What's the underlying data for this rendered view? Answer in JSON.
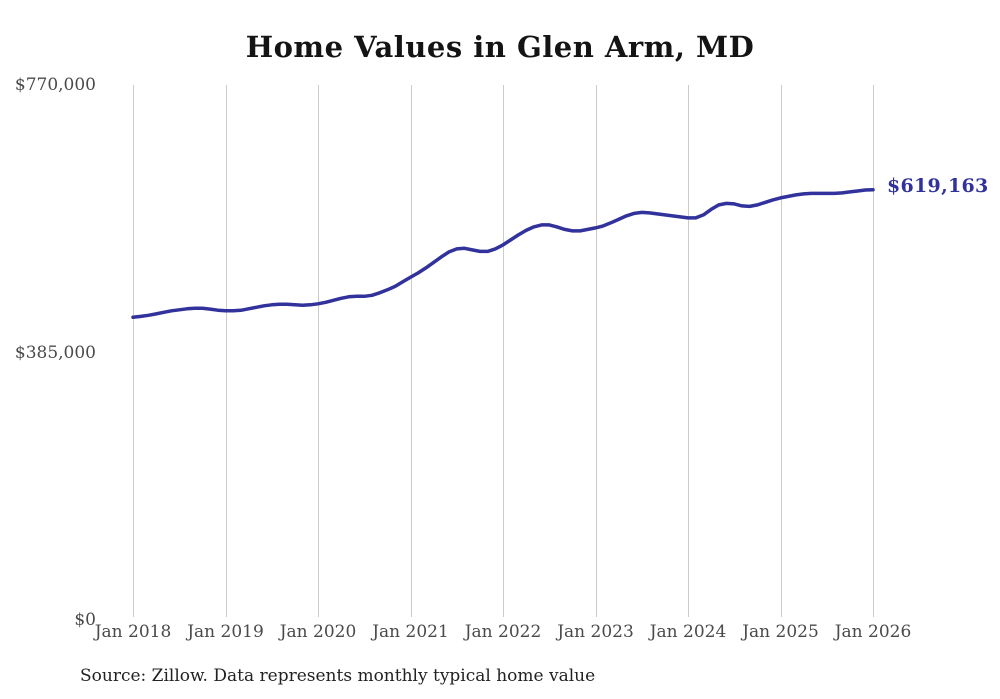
{
  "chart_data": {
    "type": "line",
    "title": "Home Values in Glen Arm, MD",
    "xlabel": "",
    "ylabel": "",
    "ylim": [
      0,
      770000
    ],
    "grid": "vertical-only",
    "legend": "none",
    "x_tick_labels": [
      "Jan 2018",
      "Jan 2019",
      "Jan 2020",
      "Jan 2021",
      "Jan 2022",
      "Jan 2023",
      "Jan 2024",
      "Jan 2025",
      "Jan 2026"
    ],
    "y_ticks": [
      {
        "label": "$0",
        "value": 0
      },
      {
        "label": "$385,000",
        "value": 385000
      },
      {
        "label": "$770,000",
        "value": 770000
      }
    ],
    "frequency": "monthly",
    "x_range": [
      "Jan 2018",
      "Jan 2026"
    ],
    "series": [
      {
        "values": [
          435700,
          437000,
          438500,
          440600,
          442800,
          445000,
          446500,
          447900,
          448600,
          448600,
          447400,
          445900,
          445000,
          445000,
          445800,
          447900,
          450100,
          452200,
          453700,
          454400,
          454400,
          453700,
          453000,
          453700,
          455100,
          457300,
          460100,
          463000,
          465200,
          465900,
          465900,
          467300,
          470900,
          475200,
          480200,
          486700,
          493200,
          499600,
          506800,
          514700,
          522600,
          529800,
          534100,
          534900,
          532700,
          530500,
          530500,
          534100,
          539900,
          547100,
          554300,
          560700,
          565800,
          568600,
          568600,
          565800,
          562200,
          560000,
          560000,
          562200,
          564400,
          567200,
          571600,
          576600,
          581600,
          585200,
          586600,
          585900,
          584500,
          583100,
          581600,
          580100,
          578700,
          578700,
          583100,
          591000,
          597400,
          599600,
          598900,
          596000,
          595300,
          597400,
          601000,
          604600,
          607500,
          609600,
          611800,
          613200,
          614000,
          614000,
          614000,
          614000,
          614700,
          616100,
          617500,
          618900,
          619163
        ]
      }
    ],
    "end_label": "$619,163",
    "final_value": 619163,
    "source_note": "Source: Zillow. Data represents monthly typical home value",
    "colors": {
      "line": "#32329C",
      "grid": "#CBCBCB",
      "tick_text": "#4a4a4a",
      "title_text": "#141414",
      "end_label_text": "#32329C"
    }
  }
}
